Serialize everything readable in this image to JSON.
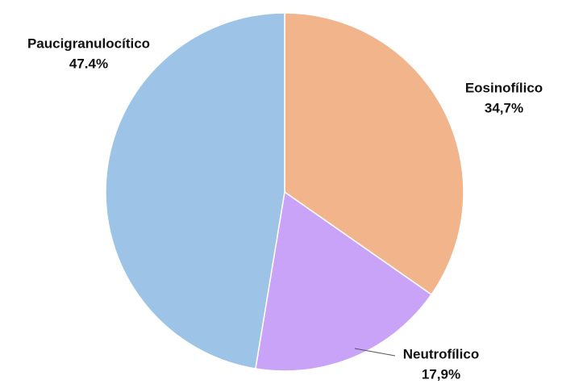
{
  "chart_data": {
    "type": "pie",
    "categories": [
      "Eosinofílico",
      "Neutrofílico",
      "Paucigranulocítico"
    ],
    "values": [
      34.7,
      17.9,
      47.4
    ],
    "value_labels": [
      "34,7%",
      "17,9%",
      "47.4%"
    ],
    "colors": [
      "#f2b48a",
      "#c9a3f7",
      "#9dc3e6"
    ]
  }
}
